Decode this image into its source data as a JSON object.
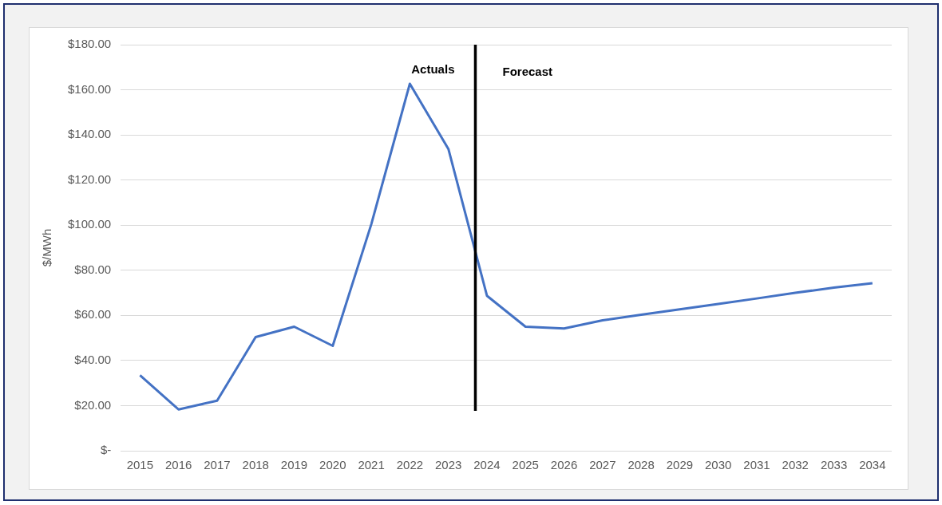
{
  "chart_data": {
    "type": "line",
    "ylabel": "$/MWh",
    "x": [
      2015,
      2016,
      2017,
      2018,
      2019,
      2020,
      2021,
      2022,
      2023,
      2024,
      2025,
      2026,
      2027,
      2028,
      2029,
      2030,
      2031,
      2032,
      2033,
      2034
    ],
    "values": [
      33.5,
      18.3,
      22.2,
      50.4,
      55,
      46.5,
      100.4,
      162.7,
      133.8,
      68.7,
      55,
      54.2,
      57.8,
      60.3,
      62.7,
      65.1,
      67.5,
      70,
      72.3,
      74.3
    ],
    "color": "#4472c4",
    "xlim": [
      2014.5,
      2034.5
    ],
    "xticks": [
      2015,
      2016,
      2017,
      2018,
      2019,
      2020,
      2021,
      2022,
      2023,
      2024,
      2025,
      2026,
      2027,
      2028,
      2029,
      2030,
      2031,
      2032,
      2033,
      2034
    ],
    "ylim": [
      0,
      180
    ],
    "yticks": [
      {
        "value": 0,
        "label": "$-"
      },
      {
        "value": 20,
        "label": "$20.00"
      },
      {
        "value": 40,
        "label": "$40.00"
      },
      {
        "value": 60,
        "label": "$60.00"
      },
      {
        "value": 80,
        "label": "$80.00"
      },
      {
        "value": 100,
        "label": "$100.00"
      },
      {
        "value": 120,
        "label": "$120.00"
      },
      {
        "value": 140,
        "label": "$140.00"
      },
      {
        "value": 160,
        "label": "$160.00"
      },
      {
        "value": 180,
        "label": "$180.00"
      }
    ],
    "grid": "y",
    "legend": false,
    "marker": "none",
    "line_style": "solid",
    "ref_lines": [
      {
        "axis": "x",
        "value": 2023.7,
        "color": "#000000",
        "line_style": "solid"
      }
    ],
    "annotations": [
      "Actuals",
      "Forecast"
    ]
  }
}
